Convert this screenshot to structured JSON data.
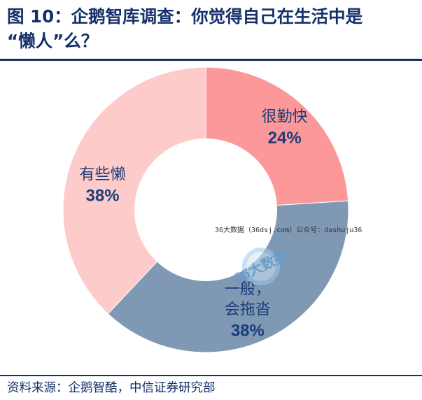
{
  "figure": {
    "title": "图 10：企鹅智库调查：你觉得自己在生活中是\n“懒人”么？",
    "source": "资料来源：企鹅智酷，中信证券研究部",
    "watermark_text": "36大数据（36dsj.com）公众号：dashuju36",
    "watermark_logo_text": "36大数据"
  },
  "chart_data": {
    "type": "pie",
    "donut": true,
    "slices": [
      {
        "label": "很勤快",
        "label_lines": [
          "很勤快"
        ],
        "value": 24,
        "value_text": "24%",
        "color": "#fc9899"
      },
      {
        "label": "一般，会拖沓",
        "label_lines": [
          "一般，",
          "会拖沓"
        ],
        "value": 38,
        "value_text": "38%",
        "color": "#7f98b3"
      },
      {
        "label": "有些懒",
        "label_lines": [
          "有些懒"
        ],
        "value": 38,
        "value_text": "38%",
        "color": "#fdcbca"
      }
    ],
    "start": "top",
    "direction": "clockwise"
  },
  "colors": {
    "title": "#14306b",
    "rule": "#14306b",
    "label_text": "#1b3e7a"
  }
}
